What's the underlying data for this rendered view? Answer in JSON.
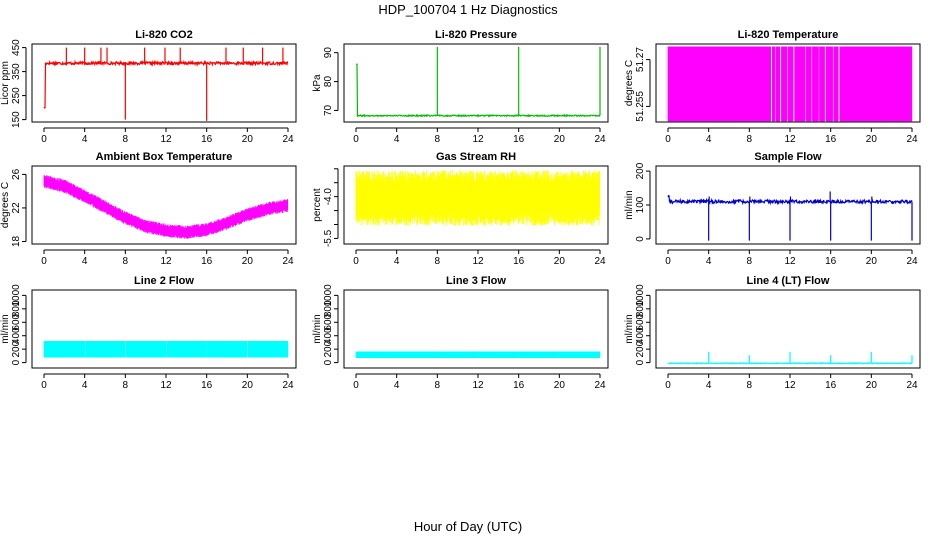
{
  "figure": {
    "title": "HDP_100704  1 Hz Diagnostics",
    "xlabel": "Hour of Day (UTC)"
  },
  "chart_data": [
    {
      "id": "co2",
      "type": "line",
      "title": "Li-820 CO2",
      "ylabel": "Licor ppm",
      "color": "#ff0000",
      "style": "signal",
      "xlim": [
        0,
        24
      ],
      "xticks": [
        0,
        4,
        8,
        12,
        16,
        20,
        24
      ],
      "ylim": [
        140,
        465
      ],
      "yticks": [
        150,
        250,
        350,
        450
      ],
      "baseline": 385,
      "noise": 6,
      "start_value": 200,
      "spikes": [
        [
          2.2,
          450
        ],
        [
          4.0,
          450
        ],
        [
          5.6,
          450
        ],
        [
          6.2,
          450
        ],
        [
          8.0,
          150
        ],
        [
          9.9,
          450
        ],
        [
          11.9,
          450
        ],
        [
          13.4,
          450
        ],
        [
          16.0,
          145
        ],
        [
          17.9,
          450
        ],
        [
          19.6,
          450
        ],
        [
          21.5,
          450
        ],
        [
          23.5,
          450
        ]
      ],
      "series": [
        {
          "name": "CO2"
        }
      ]
    },
    {
      "id": "pressure",
      "type": "line",
      "title": "Li-820 Pressure",
      "ylabel": "kPa",
      "color": "#00bb00",
      "style": "signal",
      "xlim": [
        0,
        24
      ],
      "xticks": [
        0,
        4,
        8,
        12,
        16,
        20,
        24
      ],
      "ylim": [
        66,
        93
      ],
      "yticks": [
        70,
        80,
        90
      ],
      "baseline": 68.2,
      "noise": 0.2,
      "start_value": 86,
      "spikes": [
        [
          8.0,
          92
        ],
        [
          16.0,
          92
        ],
        [
          24.0,
          92
        ]
      ],
      "series": [
        {
          "name": "Pressure"
        }
      ]
    },
    {
      "id": "licor-temp",
      "type": "line",
      "title": "Li-820 Temperature",
      "ylabel": "degrees C",
      "color": "#ff00ff",
      "style": "bars",
      "xlim": [
        0,
        24
      ],
      "xticks": [
        0,
        4,
        8,
        12,
        16,
        20,
        24
      ],
      "ylim": [
        51.25,
        51.275
      ],
      "yticks": [
        51.255,
        51.27
      ],
      "band": [
        51.2503,
        51.2742
      ],
      "gaps": [
        [
          10.1,
          10.25
        ],
        [
          10.5,
          10.6
        ],
        [
          11.0,
          11.15
        ],
        [
          11.7,
          11.8
        ],
        [
          12.3,
          12.45
        ],
        [
          13.5,
          13.6
        ],
        [
          14.1,
          14.2
        ],
        [
          14.8,
          14.9
        ],
        [
          15.4,
          15.55
        ],
        [
          16.2,
          16.3
        ],
        [
          16.75,
          16.9
        ]
      ],
      "series": [
        {
          "name": "Temperature"
        }
      ]
    },
    {
      "id": "box-temp",
      "type": "line",
      "title": "Ambient Box Temperature",
      "ylabel": "degrees C",
      "color": "#ff00ff",
      "style": "band",
      "xlim": [
        0,
        24
      ],
      "xticks": [
        0,
        4,
        8,
        12,
        16,
        20,
        24
      ],
      "ylim": [
        17.7,
        27
      ],
      "yticks": [
        18,
        22,
        26
      ],
      "center": [
        [
          0,
          25.2
        ],
        [
          2,
          24.6
        ],
        [
          4,
          23.4
        ],
        [
          6,
          22.1
        ],
        [
          8,
          20.8
        ],
        [
          10,
          19.8
        ],
        [
          12,
          19.3
        ],
        [
          14,
          19.1
        ],
        [
          16,
          19.4
        ],
        [
          18,
          20.2
        ],
        [
          20,
          21.2
        ],
        [
          22,
          21.9
        ],
        [
          24,
          22.3
        ]
      ],
      "halfwidth": 0.8,
      "series": [
        {
          "name": "Ambient Box Temperature"
        }
      ]
    },
    {
      "id": "rh",
      "type": "line",
      "title": "Gas Stream RH",
      "ylabel": "percent",
      "color": "#ffff00",
      "style": "band",
      "xlim": [
        0,
        24
      ],
      "xticks": [
        0,
        4,
        8,
        12,
        16,
        20,
        24
      ],
      "ylim": [
        -5.7,
        -2.9
      ],
      "ytick_labels": [
        [
          -5.5,
          "-5.5"
        ],
        [
          -5.0,
          ""
        ],
        [
          -4.5,
          ""
        ],
        [
          -4.0,
          "-4.0"
        ],
        [
          -3.5,
          ""
        ],
        [
          -3.0,
          ""
        ]
      ],
      "center": [
        [
          0,
          -4.05
        ],
        [
          24,
          -4.05
        ]
      ],
      "halfwidth": 1.0,
      "series": [
        {
          "name": "RH"
        }
      ]
    },
    {
      "id": "sample-flow",
      "type": "line",
      "title": "Sample Flow",
      "ylabel": "ml/min",
      "color": "#0000cc",
      "style": "signal",
      "xlim": [
        0,
        24
      ],
      "xticks": [
        0,
        4,
        8,
        12,
        16,
        20,
        24
      ],
      "ylim": [
        -15,
        215
      ],
      "yticks": [
        0,
        100,
        200
      ],
      "baseline": 110,
      "noise": 5,
      "start_value": 125,
      "spikes": [
        [
          4.0,
          -5
        ],
        [
          4.05,
          125
        ],
        [
          8.0,
          -5
        ],
        [
          8.05,
          125
        ],
        [
          12.0,
          -5
        ],
        [
          12.05,
          125
        ],
        [
          16.0,
          -5
        ],
        [
          15.95,
          140
        ],
        [
          20.0,
          -5
        ],
        [
          20.05,
          125
        ],
        [
          24.0,
          -5
        ]
      ],
      "series": [
        {
          "name": "Sample Flow"
        }
      ]
    },
    {
      "id": "line2-flow",
      "type": "line",
      "title": "Line 2 Flow",
      "ylabel": "ml/min",
      "color": "#00ffff",
      "style": "bars",
      "xlim": [
        0,
        24
      ],
      "xticks": [
        0,
        4,
        8,
        12,
        16,
        20,
        24
      ],
      "ylim": [
        -80,
        1080
      ],
      "yticks": [
        0,
        200,
        400,
        600,
        800,
        1000
      ],
      "band": [
        80,
        320
      ],
      "gaps": [
        [
          4.0,
          4.08
        ],
        [
          8.0,
          8.08
        ],
        [
          12.0,
          12.08
        ],
        [
          16.0,
          16.08
        ],
        [
          20.0,
          20.08
        ]
      ],
      "series": [
        {
          "name": "Line 2 Flow"
        }
      ]
    },
    {
      "id": "line3-flow",
      "type": "line",
      "title": "Line 3 Flow",
      "ylabel": "ml/min",
      "color": "#00ffff",
      "style": "bars",
      "xlim": [
        0,
        24
      ],
      "xticks": [
        0,
        4,
        8,
        12,
        16,
        20,
        24
      ],
      "ylim": [
        -80,
        1080
      ],
      "yticks": [
        0,
        200,
        400,
        600,
        800,
        1000
      ],
      "band": [
        70,
        165
      ],
      "gaps": [
        [
          4.0,
          4.06
        ],
        [
          8.0,
          8.06
        ],
        [
          12.0,
          12.06
        ],
        [
          16.0,
          16.06
        ],
        [
          20.0,
          20.06
        ]
      ],
      "series": [
        {
          "name": "Line 3 Flow"
        }
      ]
    },
    {
      "id": "line4-flow",
      "type": "line",
      "title": "Line 4 (LT) Flow",
      "ylabel": "ml/min",
      "color": "#00ffff",
      "style": "signal",
      "xlim": [
        0,
        24
      ],
      "xticks": [
        0,
        4,
        8,
        12,
        16,
        20,
        24
      ],
      "ylim": [
        -80,
        1080
      ],
      "yticks": [
        0,
        200,
        400,
        600,
        800,
        1000
      ],
      "baseline": -10,
      "noise": 6,
      "start_value": -10,
      "spikes": [
        [
          4.0,
          160
        ],
        [
          8.0,
          110
        ],
        [
          12.0,
          160
        ],
        [
          16.0,
          110
        ],
        [
          20.0,
          160
        ],
        [
          24.0,
          110
        ]
      ],
      "series": [
        {
          "name": "Line 4 Flow"
        }
      ]
    }
  ]
}
